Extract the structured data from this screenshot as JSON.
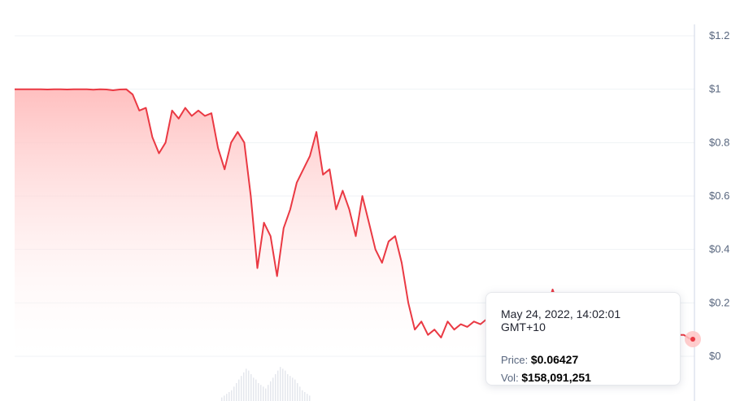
{
  "chart_data": {
    "type": "area",
    "title": "",
    "xlabel": "",
    "ylabel": "",
    "ylim": [
      0,
      1.2
    ],
    "yticks": [
      {
        "value": 1.2,
        "label": "$1.2"
      },
      {
        "value": 1.0,
        "label": "$1"
      },
      {
        "value": 0.8,
        "label": "$0.8"
      },
      {
        "value": 0.6,
        "label": "$0.6"
      },
      {
        "value": 0.4,
        "label": "$0.4"
      },
      {
        "value": 0.2,
        "label": "$0.2"
      },
      {
        "value": 0.0,
        "label": "$0"
      }
    ],
    "y_axis_position": "right",
    "grid": true,
    "series": [
      {
        "values": [
          1.0,
          1.0,
          1.0,
          1.0,
          1.0,
          0.999,
          1.0,
          1.0,
          0.999,
          1.0,
          1.0,
          1.0,
          0.998,
          1.0,
          0.999,
          0.996,
          0.999,
          1.0,
          0.98,
          0.92,
          0.93,
          0.82,
          0.76,
          0.8,
          0.92,
          0.89,
          0.93,
          0.9,
          0.92,
          0.9,
          0.91,
          0.78,
          0.7,
          0.8,
          0.84,
          0.8,
          0.6,
          0.33,
          0.5,
          0.45,
          0.3,
          0.48,
          0.55,
          0.65,
          0.7,
          0.75,
          0.84,
          0.68,
          0.7,
          0.55,
          0.62,
          0.55,
          0.45,
          0.6,
          0.5,
          0.4,
          0.35,
          0.43,
          0.45,
          0.35,
          0.2,
          0.1,
          0.13,
          0.08,
          0.1,
          0.07,
          0.13,
          0.1,
          0.12,
          0.11,
          0.13,
          0.12,
          0.14,
          0.13,
          0.16,
          0.15,
          0.2,
          0.17,
          0.15,
          0.16,
          0.16,
          0.17,
          0.25,
          0.18,
          0.17,
          0.17,
          0.15,
          0.15,
          0.14,
          0.13,
          0.14,
          0.12,
          0.12,
          0.07,
          0.05,
          0.08,
          0.09,
          0.07,
          0.1,
          0.08,
          0.09,
          0.08,
          0.08,
          0.064
        ]
      }
    ],
    "volume": {
      "values": [
        0.02,
        0.03,
        0.04,
        0.05,
        0.06,
        0.08,
        0.1,
        0.12,
        0.14,
        0.16,
        0.18,
        0.17,
        0.15,
        0.13,
        0.12,
        0.1,
        0.09,
        0.08,
        0.07,
        0.09,
        0.11,
        0.13,
        0.15,
        0.17,
        0.19,
        0.18,
        0.17,
        0.15,
        0.14,
        0.13,
        0.12,
        0.1,
        0.08,
        0.06,
        0.05,
        0.04,
        0.03
      ]
    },
    "tooltip": {
      "date": "May 24, 2022, 14:02:01 GMT+10",
      "price_label": "Price:",
      "price_value": "$0.06427",
      "vol_label": "Vol:",
      "vol_value": "$158,091,251"
    },
    "colors": {
      "line": "#ea3943",
      "area_top": "#ffbcbc",
      "area_bottom": "#ffffff",
      "grid": "#eff2f5",
      "axis": "#cfd6e4",
      "volume": "#d8dde6"
    }
  }
}
